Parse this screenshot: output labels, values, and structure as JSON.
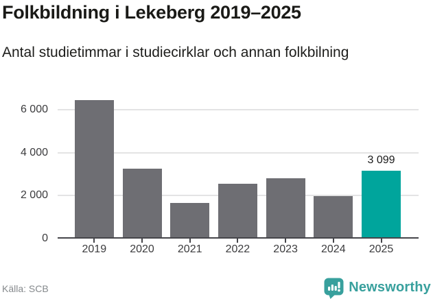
{
  "header": {
    "title": "Folkbildning i Lekeberg 2019–2025",
    "subtitle": "Antal studietimmar i studiecirklar och annan folkbilning"
  },
  "chart_data": {
    "type": "bar",
    "title": "Folkbildning i Lekeberg 2019–2025",
    "subtitle": "Antal studietimmar i studiecirklar och annan folkbilning",
    "categories": [
      "2019",
      "2020",
      "2021",
      "2022",
      "2023",
      "2024",
      "2025"
    ],
    "values": [
      6400,
      3180,
      1600,
      2500,
      2750,
      1910,
      3099
    ],
    "highlight_index": 6,
    "annotations": [
      {
        "index": 6,
        "label": "3 099"
      }
    ],
    "xlabel": "",
    "ylabel": "",
    "ylim": [
      0,
      6640
    ],
    "yticks": [
      {
        "value": 0,
        "label": "0"
      },
      {
        "value": 2000,
        "label": "2 000"
      },
      {
        "value": 4000,
        "label": "4 000"
      },
      {
        "value": 6000,
        "label": "6 000"
      }
    ],
    "grid": true,
    "legend": "none",
    "colors": {
      "bar": "#6e6e73",
      "highlight": "#00a59c",
      "gridline": "#e3e3e4",
      "axis": "#45454a",
      "tick_label": "#3b3b3d",
      "value_label": "#1a1a1a"
    }
  },
  "footer": {
    "source": "Källa: SCB",
    "brand": "Newsworthy",
    "brand_color": "#38a09d",
    "brand_icon": "newsworthy-badge-icon"
  }
}
